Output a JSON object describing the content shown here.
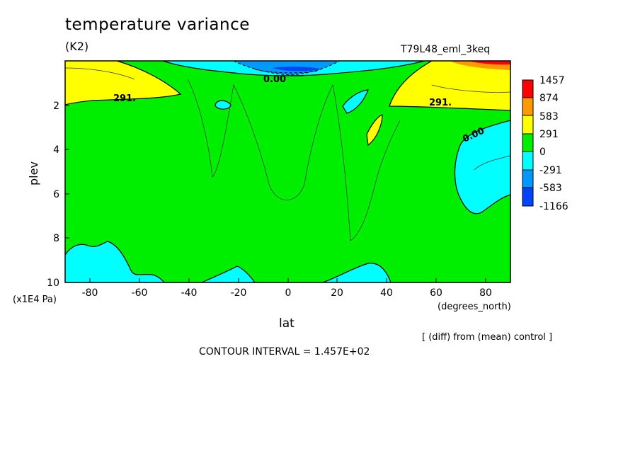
{
  "title": "temperature variance",
  "units": "(K2)",
  "run_id": "T79L48_eml_3keq",
  "ylabel": "plev",
  "y_units": "(x1E4 Pa)",
  "xlabel": "lat",
  "x_units": "(degrees_north)",
  "diff_note": "[ (diff) from (mean) control ]",
  "contour_interval": "CONTOUR INTERVAL = 1.457E+02",
  "chart_data": {
    "type": "contour",
    "title": "temperature variance",
    "xlabel": "lat",
    "ylabel": "plev",
    "xlim": [
      -90,
      90
    ],
    "ylim": [
      10,
      0
    ],
    "x_ticks": [
      -80,
      -60,
      -40,
      -20,
      0,
      20,
      40,
      60,
      80
    ],
    "y_ticks": [
      2,
      4,
      6,
      8,
      10
    ],
    "colorbar": {
      "levels": [
        "1457",
        "874",
        "583",
        "291",
        "0",
        "-291",
        "-583",
        "-1166"
      ],
      "colors": [
        "#ff0000",
        "#ff9900",
        "#ffff00",
        "#00ee00",
        "#00ffff",
        "#0099ff",
        "#0044ff"
      ]
    },
    "contour_labels": [
      {
        "text": "291.",
        "lat": -66,
        "plev": 1.9
      },
      {
        "text": "291.",
        "lat": 65,
        "plev": 1.9
      },
      {
        "text": "0.00",
        "lat": 75,
        "plev": 3.5
      },
      {
        "text": "0.00",
        "lat": -5,
        "plev": 0.8
      }
    ],
    "regions": [
      {
        "value_class": "0 to 291",
        "desc": "background over most of domain"
      },
      {
        "value_class": "291 to 583",
        "lat_range": [
          -90,
          -45
        ],
        "plev_range": [
          0,
          2
        ]
      },
      {
        "value_class": "291 to 583",
        "lat_range": [
          45,
          90
        ],
        "plev_range": [
          0,
          2.2
        ]
      },
      {
        "value_class": "583 to 874",
        "lat_range": [
          65,
          90
        ],
        "plev_range": [
          0,
          0.3
        ]
      },
      {
        "value_class": "874 to 1457",
        "lat_range": [
          78,
          88
        ],
        "plev_range": [
          0,
          0.1
        ]
      },
      {
        "value_class": "-291 to 0",
        "lat_range": [
          -40,
          40
        ],
        "plev_range": [
          0,
          0.6
        ]
      },
      {
        "value_class": "-583 to -291",
        "lat_range": [
          -15,
          15
        ],
        "plev_range": [
          0.1,
          0.5
        ]
      },
      {
        "value_class": "-1166 to -583",
        "lat_range": [
          -10,
          10
        ],
        "plev_range": [
          0.2,
          0.4
        ]
      },
      {
        "value_class": "-291 to 0",
        "lat_range": [
          68,
          90
        ],
        "plev_range": [
          2.5,
          7
        ]
      },
      {
        "value_class": "-291 to 0",
        "lat_range": [
          -90,
          -50
        ],
        "plev_range": [
          8,
          10
        ]
      },
      {
        "value_class": "-291 to 0",
        "lat_range": [
          -40,
          4
        ],
        "plev_range": [
          9.2,
          10
        ]
      },
      {
        "value_class": "-291 to 0",
        "lat_range": [
          14,
          45
        ],
        "plev_range": [
          9.2,
          10
        ]
      },
      {
        "value_class": "-291 to 0",
        "lat_range": [
          -29,
          -24
        ],
        "plev_range": [
          1.8,
          2.2
        ]
      },
      {
        "value_class": "-291 to 0",
        "lat_range": [
          22,
          32
        ],
        "plev_range": [
          1.4,
          2.4
        ]
      },
      {
        "value_class": "291 to 583",
        "lat_range": [
          32,
          38
        ],
        "plev_range": [
          2.5,
          3.8
        ]
      }
    ]
  }
}
